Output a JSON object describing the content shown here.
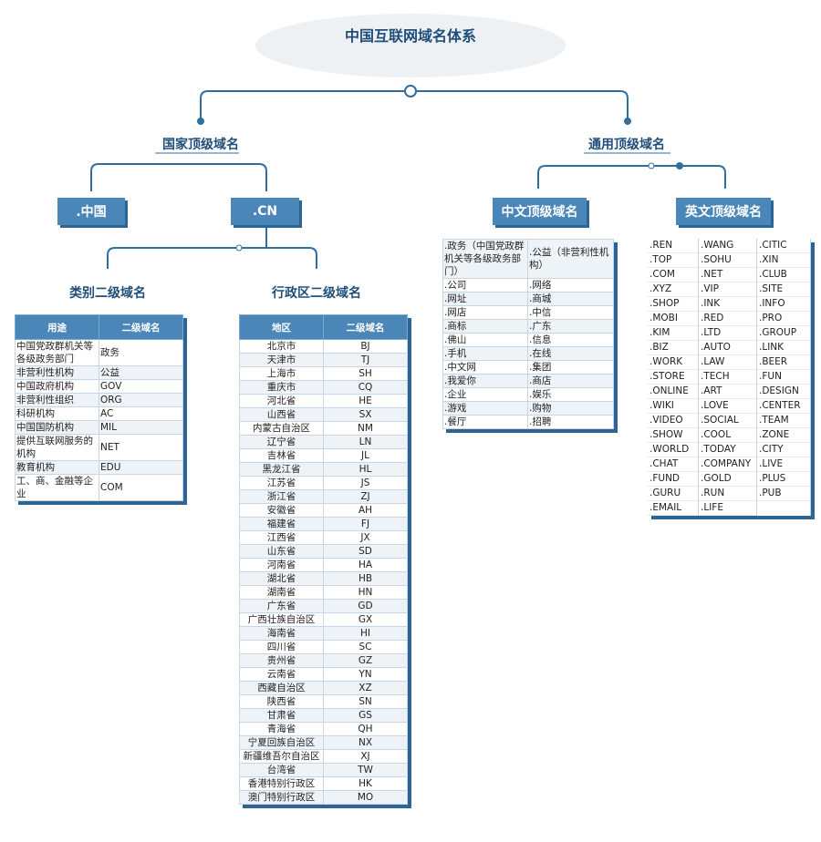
{
  "title": "中国互联网域名体系",
  "country": {
    "label": "国家顶级域名",
    "domains": [
      ".中国",
      ".CN"
    ],
    "second_level": [
      "类别二级域名",
      "行政区二级域名"
    ]
  },
  "generic": {
    "label": "通用顶级域名",
    "groups": [
      "中文顶级域名",
      "英文顶级域名"
    ]
  },
  "category_table": {
    "header": [
      "用途",
      "二级域名"
    ],
    "rows": [
      [
        "中国党政群机关等各级政务部门",
        "政务"
      ],
      [
        "非营利性机构",
        "公益"
      ],
      [
        "中国政府机构",
        "GOV"
      ],
      [
        "非营利性组织",
        "ORG"
      ],
      [
        "科研机构",
        "AC"
      ],
      [
        "中国国防机构",
        "MIL"
      ],
      [
        "提供互联网服务的机构",
        "NET"
      ],
      [
        "教育机构",
        "EDU"
      ],
      [
        "工、商、金融等企业",
        "COM"
      ]
    ]
  },
  "region_table": {
    "header": [
      "地区",
      "二级域名"
    ],
    "rows": [
      [
        "北京市",
        "BJ"
      ],
      [
        "天津市",
        "TJ"
      ],
      [
        "上海市",
        "SH"
      ],
      [
        "重庆市",
        "CQ"
      ],
      [
        "河北省",
        "HE"
      ],
      [
        "山西省",
        "SX"
      ],
      [
        "内蒙古自治区",
        "NM"
      ],
      [
        "辽宁省",
        "LN"
      ],
      [
        "吉林省",
        "JL"
      ],
      [
        "黑龙江省",
        "HL"
      ],
      [
        "江苏省",
        "JS"
      ],
      [
        "浙江省",
        "ZJ"
      ],
      [
        "安徽省",
        "AH"
      ],
      [
        "福建省",
        "FJ"
      ],
      [
        "江西省",
        "JX"
      ],
      [
        "山东省",
        "SD"
      ],
      [
        "河南省",
        "HA"
      ],
      [
        "湖北省",
        "HB"
      ],
      [
        "湖南省",
        "HN"
      ],
      [
        "广东省",
        "GD"
      ],
      [
        "广西壮族自治区",
        "GX"
      ],
      [
        "海南省",
        "HI"
      ],
      [
        "四川省",
        "SC"
      ],
      [
        "贵州省",
        "GZ"
      ],
      [
        "云南省",
        "YN"
      ],
      [
        "西藏自治区",
        "XZ"
      ],
      [
        "陕西省",
        "SN"
      ],
      [
        "甘肃省",
        "GS"
      ],
      [
        "青海省",
        "QH"
      ],
      [
        "宁夏回族自治区",
        "NX"
      ],
      [
        "新疆维吾尔自治区",
        "XJ"
      ],
      [
        "台湾省",
        "TW"
      ],
      [
        "香港特别行政区",
        "HK"
      ],
      [
        "澳门特别行政区",
        "MO"
      ]
    ]
  },
  "chinese_table": {
    "rows": [
      [
        ".政务（中国党政群机关等各级政务部门）",
        ".公益（非营利性机构）"
      ],
      [
        ".公司",
        ".网络"
      ],
      [
        ".网址",
        ".商城"
      ],
      [
        ".网店",
        ".中信"
      ],
      [
        ".商标",
        ".广东"
      ],
      [
        ".佛山",
        ".信息"
      ],
      [
        ".手机",
        ".在线"
      ],
      [
        ".中文网",
        ".集团"
      ],
      [
        ".我爱你",
        ".商店"
      ],
      [
        ".企业",
        ".娱乐"
      ],
      [
        ".游戏",
        ".购物"
      ],
      [
        ".餐厅",
        ".招聘"
      ]
    ]
  },
  "english_table": {
    "columns": [
      [
        ".REN",
        ".TOP",
        ".COM",
        ".XYZ",
        ".SHOP",
        ".MOBI",
        ".KIM",
        ".BIZ",
        ".WORK",
        ".STORE",
        ".ONLINE",
        ".WIKI",
        ".VIDEO",
        ".SHOW",
        ".WORLD",
        ".CHAT",
        ".FUND",
        ".GURU",
        ".EMAIL"
      ],
      [
        ".WANG",
        ".SOHU",
        ".NET",
        ".VIP",
        ".INK",
        ".RED",
        ".LTD",
        ".AUTO",
        ".LAW",
        ".TECH",
        ".ART",
        ".LOVE",
        ".SOCIAL",
        ".COOL",
        ".TODAY",
        ".COMPANY",
        ".GOLD",
        ".RUN",
        ".LIFE"
      ],
      [
        ".CITIC",
        ".XIN",
        ".CLUB",
        ".SITE",
        ".INFO",
        ".PRO",
        ".GROUP",
        ".LINK",
        ".BEER",
        ".FUN",
        ".DESIGN",
        ".CENTER",
        ".TEAM",
        ".ZONE",
        ".CITY",
        ".LIVE",
        ".PLUS",
        ".PUB"
      ]
    ]
  }
}
